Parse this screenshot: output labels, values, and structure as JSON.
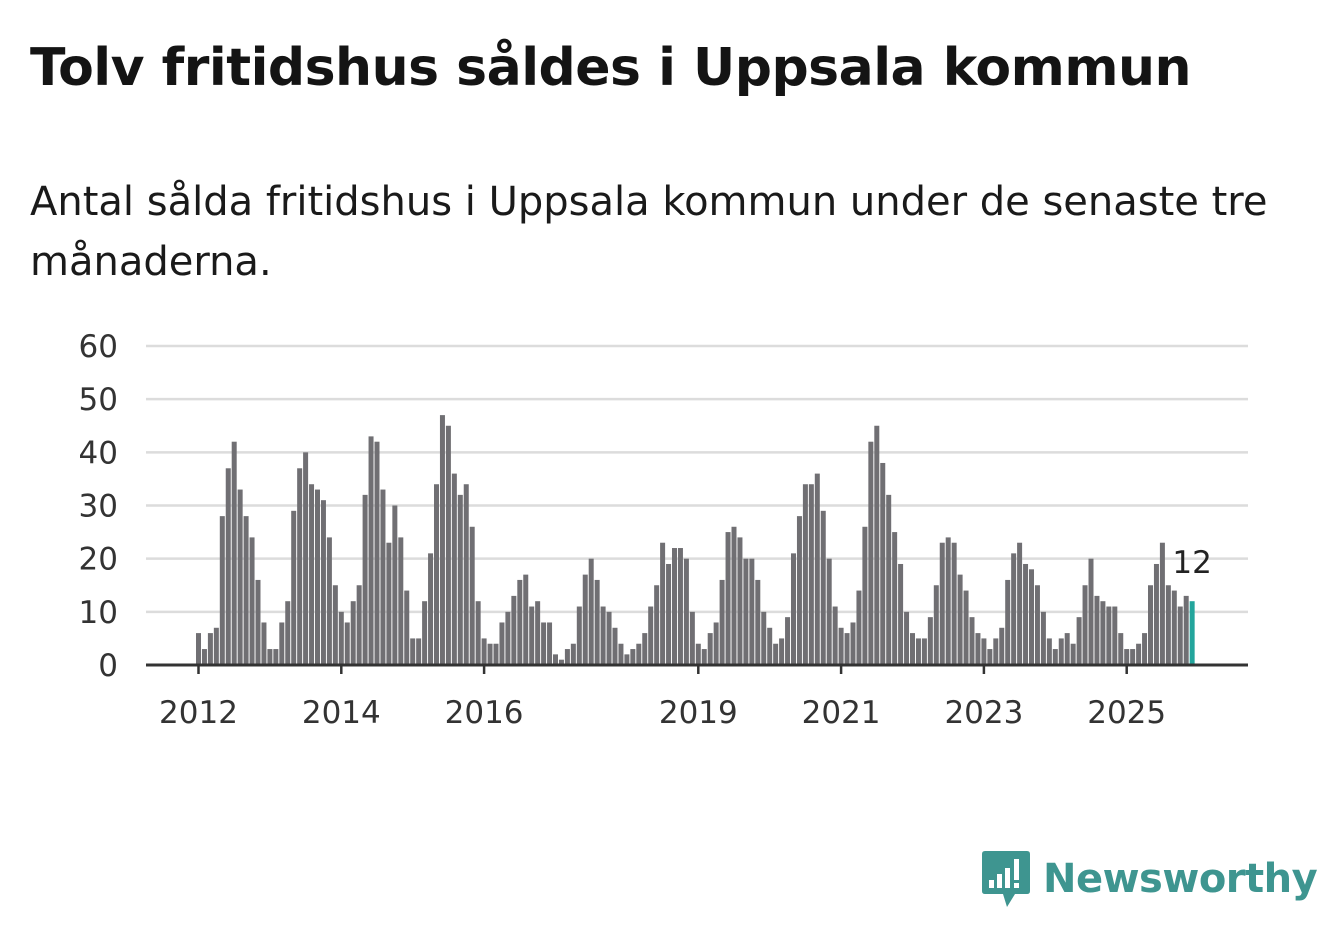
{
  "title": "Tolv fritidshus såldes i Uppsala kommun",
  "subtitle": "Antal sålda fritidshus i Uppsala kommun under de senaste tre månaderna.",
  "brand": {
    "name": "Newsworthy",
    "icon": "newsworthy-logo-icon",
    "color": "#3e9590"
  },
  "colors": {
    "bar": "#706f73",
    "highlight": "#23a59c",
    "grid": "#dcdcdc",
    "axis": "#333333"
  },
  "chart_data": {
    "type": "bar",
    "title": "Antal sålda fritidshus i Uppsala kommun under de senaste tre månaderna.",
    "xlabel": "",
    "ylabel": "",
    "ylim": [
      0,
      60
    ],
    "yticks": [
      "0",
      "10",
      "20",
      "30",
      "40",
      "50",
      "60"
    ],
    "start": "2012-01",
    "frequency": "monthly",
    "xticks": [
      {
        "label": "2012",
        "index": 0
      },
      {
        "label": "2014",
        "index": 24
      },
      {
        "label": "2016",
        "index": 48
      },
      {
        "label": "2019",
        "index": 84
      },
      {
        "label": "2021",
        "index": 108
      },
      {
        "label": "2023",
        "index": 132
      },
      {
        "label": "2025",
        "index": 156
      }
    ],
    "values": [
      6,
      3,
      6,
      7,
      28,
      37,
      42,
      33,
      28,
      24,
      16,
      8,
      3,
      3,
      8,
      12,
      29,
      37,
      40,
      34,
      33,
      31,
      24,
      15,
      10,
      8,
      12,
      15,
      32,
      43,
      42,
      33,
      23,
      30,
      24,
      14,
      5,
      5,
      12,
      21,
      34,
      47,
      45,
      36,
      32,
      34,
      26,
      12,
      5,
      4,
      4,
      8,
      10,
      13,
      16,
      17,
      11,
      12,
      8,
      8,
      2,
      1,
      3,
      4,
      11,
      17,
      20,
      16,
      11,
      10,
      7,
      4,
      2,
      3,
      4,
      6,
      11,
      15,
      23,
      19,
      22,
      22,
      20,
      10,
      4,
      3,
      6,
      8,
      16,
      25,
      26,
      24,
      20,
      20,
      16,
      10,
      7,
      4,
      5,
      9,
      21,
      28,
      34,
      34,
      36,
      29,
      20,
      11,
      7,
      6,
      8,
      14,
      26,
      42,
      45,
      38,
      32,
      25,
      19,
      10,
      6,
      5,
      5,
      9,
      15,
      23,
      24,
      23,
      17,
      14,
      9,
      6,
      5,
      3,
      5,
      7,
      16,
      21,
      23,
      19,
      18,
      15,
      10,
      5,
      3,
      5,
      6,
      4,
      9,
      15,
      20,
      13,
      12,
      11,
      11,
      6,
      3,
      3,
      4,
      6,
      15,
      19,
      23,
      15,
      14,
      11,
      13,
      12
    ],
    "highlight_index": 167,
    "annotation": {
      "label": "12",
      "index": 167
    }
  }
}
